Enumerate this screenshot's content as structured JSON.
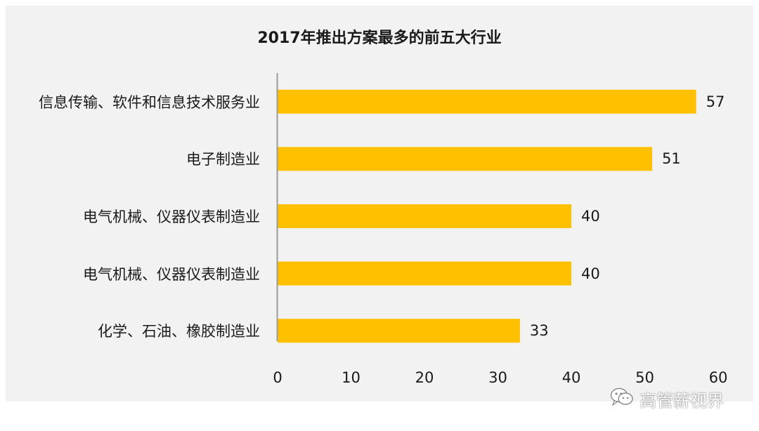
{
  "chart_data": {
    "type": "bar",
    "orientation": "horizontal",
    "title": "2017年推出方案最多的前五大行业",
    "categories": [
      "信息传输、软件和信息技术服务业",
      "电子制造业",
      "电气机械、仪器仪表制造业",
      "电气机械、仪器仪表制造业",
      "化学、石油、橡胶制造业"
    ],
    "values": [
      57,
      51,
      40,
      40,
      33
    ],
    "xlim": [
      0,
      60
    ],
    "xticks": [
      "0",
      "10",
      "20",
      "30",
      "40",
      "50",
      "60"
    ],
    "grid": false,
    "bar_color": "#ffc000",
    "background": "#f2f2f2"
  },
  "watermark": {
    "text": "高管薪视界",
    "icon": "wechat-icon"
  }
}
